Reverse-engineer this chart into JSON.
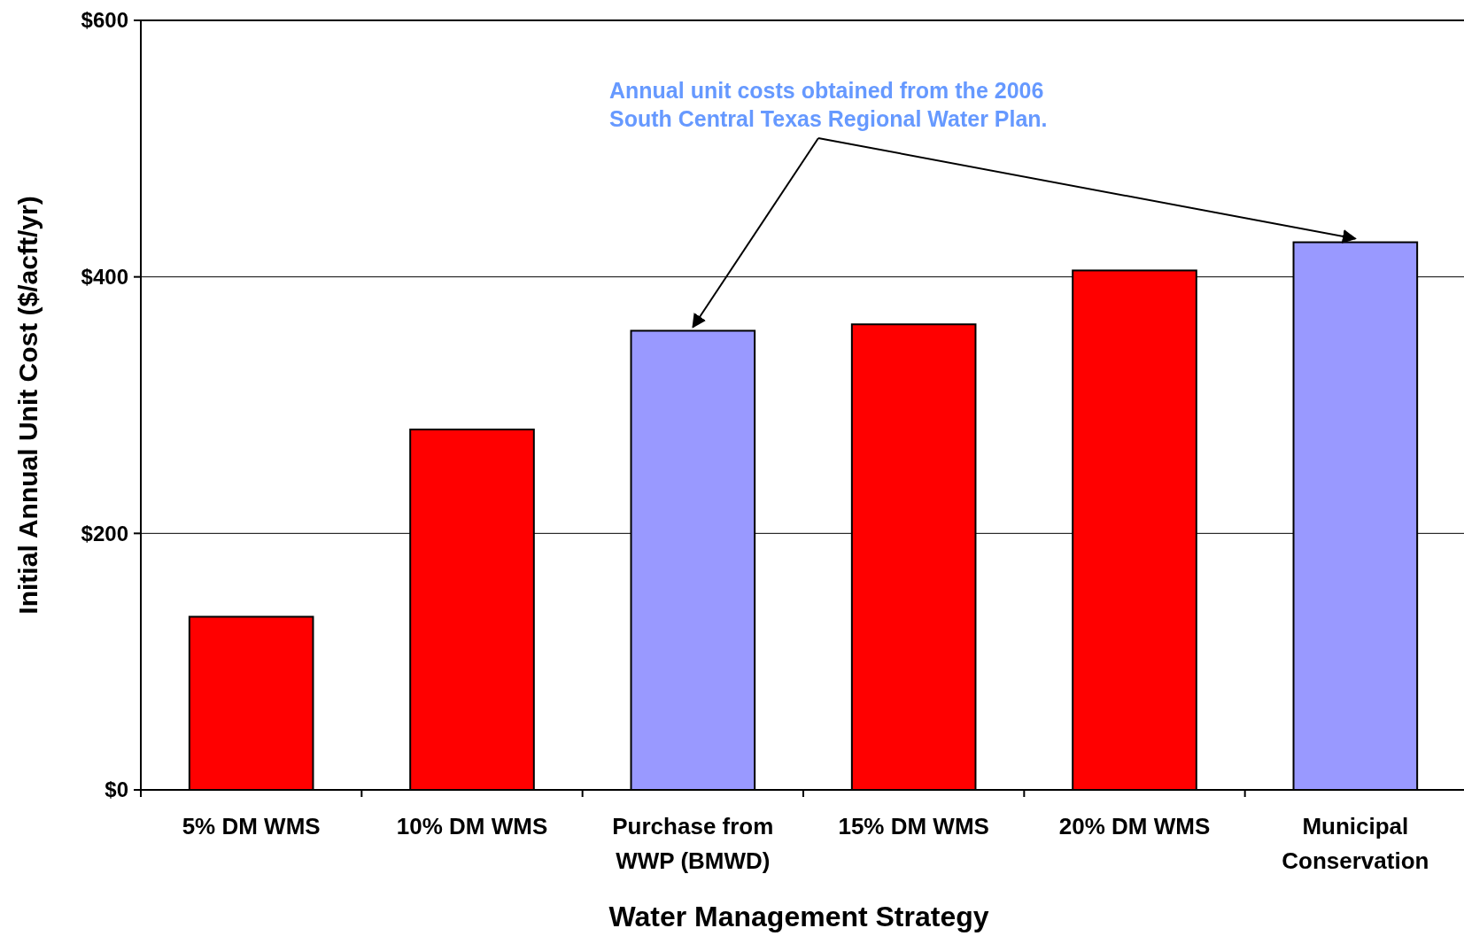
{
  "chart_data": {
    "type": "bar",
    "categories": [
      "5% DM WMS",
      "10% DM WMS",
      "Purchase from WWP (BMWD)",
      "15% DM WMS",
      "20% DM WMS",
      "Municipal Conservation"
    ],
    "values": [
      135,
      281,
      358,
      363,
      405,
      427
    ],
    "colors": [
      "#ff0000",
      "#ff0000",
      "#9999ff",
      "#ff0000",
      "#ff0000",
      "#9999ff"
    ],
    "xlabel": "Water Management Strategy",
    "ylabel": "Initial Annual Unit Cost ($/acft/yr)",
    "ylim": [
      0,
      600
    ],
    "yticks": [
      {
        "value": 0,
        "label": "$0"
      },
      {
        "value": 200,
        "label": "$200"
      },
      {
        "value": 400,
        "label": "$400"
      },
      {
        "value": 600,
        "label": "$600"
      }
    ],
    "grid": "y",
    "annotations": [
      {
        "text": "Annual unit costs obtained from the 2006 South Central Texas Regional Water Plan.",
        "x": "Purchase from WWP (BMWD)",
        "y": 358
      }
    ]
  }
}
